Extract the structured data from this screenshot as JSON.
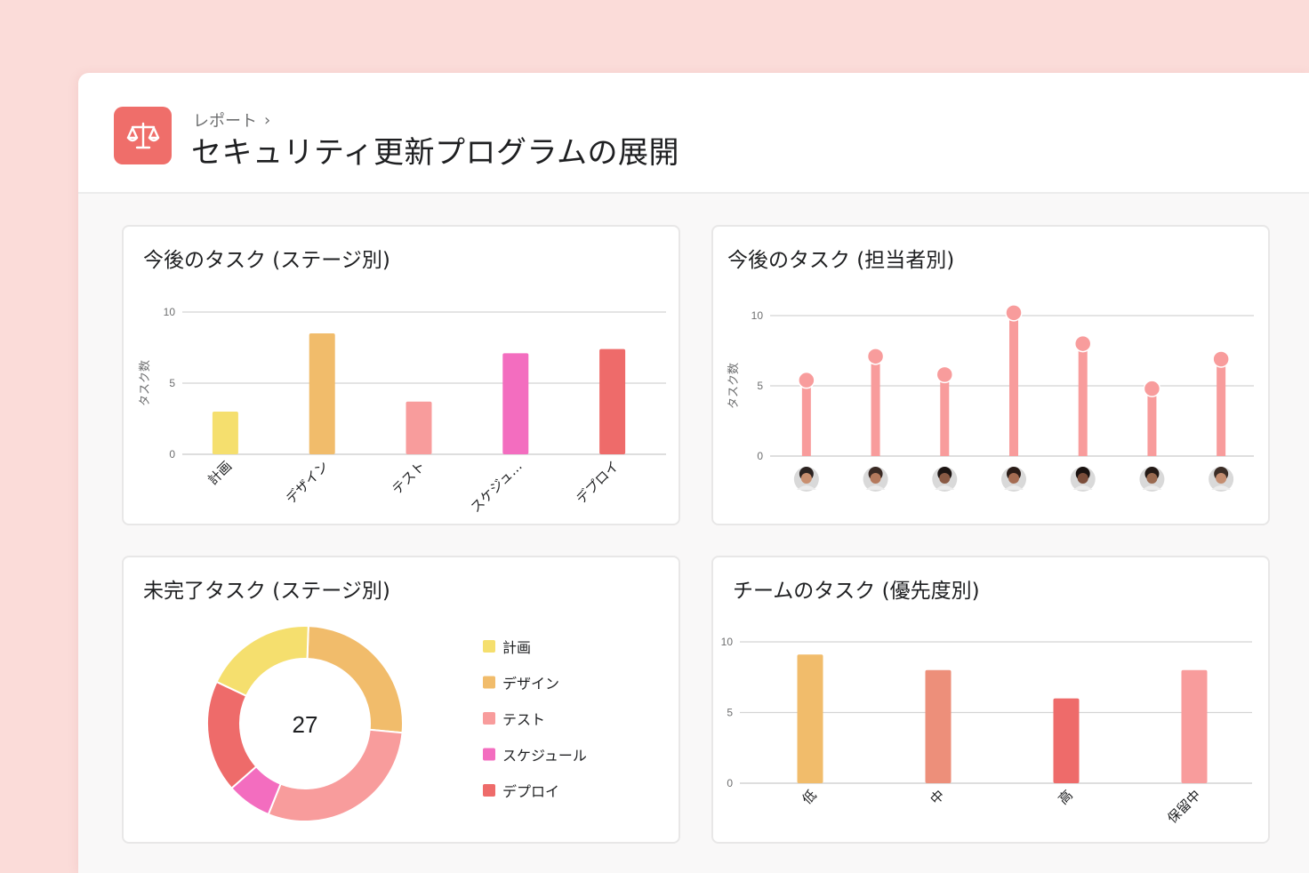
{
  "breadcrumb": {
    "parent": "レポート",
    "separator": "›"
  },
  "page_title": "セキュリティ更新プログラムの展開",
  "icons": {
    "app": "scales-icon"
  },
  "colors": {
    "yellow": "#f5df6e",
    "orange": "#f1bc6b",
    "pink": "#f89c9c",
    "magenta": "#f36dbf",
    "red": "#ee6b6a",
    "salmon": "#ed8f7a",
    "accent": "#ef6e6a"
  },
  "cards": {
    "stage": {
      "title": "今後のタスク (ステージ別)"
    },
    "assignee": {
      "title": "今後のタスク (担当者別)"
    },
    "incomplete": {
      "title": "未完了タスク (ステージ別)"
    },
    "priority": {
      "title": "チームのタスク (優先度別)"
    }
  },
  "chart_data": [
    {
      "type": "bar",
      "title": "今後のタスク (ステージ別)",
      "ylabel": "タスク数",
      "ylim": [
        0,
        10
      ],
      "yticks": [
        0,
        5,
        10
      ],
      "categories": [
        "計画",
        "デザイン",
        "テスト",
        "スケジュ…",
        "デプロイ"
      ],
      "values": [
        3,
        8.5,
        3.7,
        7.1,
        7.4
      ],
      "colors": [
        "#f5df6e",
        "#f1bc6b",
        "#f89c9c",
        "#f36dbf",
        "#ee6b6a"
      ]
    },
    {
      "type": "scatter",
      "title": "今後のタスク (担当者別)",
      "ylabel": "タスク数",
      "ylim": [
        0,
        10
      ],
      "yticks": [
        0,
        5,
        10
      ],
      "categories": [
        "avatar-1",
        "avatar-2",
        "avatar-3",
        "avatar-4",
        "avatar-5",
        "avatar-6",
        "avatar-7"
      ],
      "values": [
        5.4,
        7.1,
        5.8,
        10.2,
        8.0,
        4.8,
        6.9
      ],
      "color": "#f89c9c"
    },
    {
      "type": "pie",
      "title": "未完了タスク (ステージ別)",
      "center_label": "27",
      "categories": [
        "計画",
        "デザイン",
        "テスト",
        "スケジュール",
        "デプロイ"
      ],
      "values": [
        5,
        7,
        8,
        2,
        5
      ],
      "colors": [
        "#f5df6e",
        "#f1bc6b",
        "#f89c9c",
        "#f36dbf",
        "#ee6b6a"
      ]
    },
    {
      "type": "bar",
      "title": "チームのタスク (優先度別)",
      "ylim": [
        0,
        10
      ],
      "yticks": [
        0,
        5,
        10
      ],
      "categories": [
        "低",
        "中",
        "高",
        "保留中"
      ],
      "values": [
        9.1,
        8.0,
        6.0,
        8.0
      ],
      "colors": [
        "#f1bc6b",
        "#ed8f7a",
        "#ee6b6a",
        "#f89c9c"
      ]
    }
  ]
}
